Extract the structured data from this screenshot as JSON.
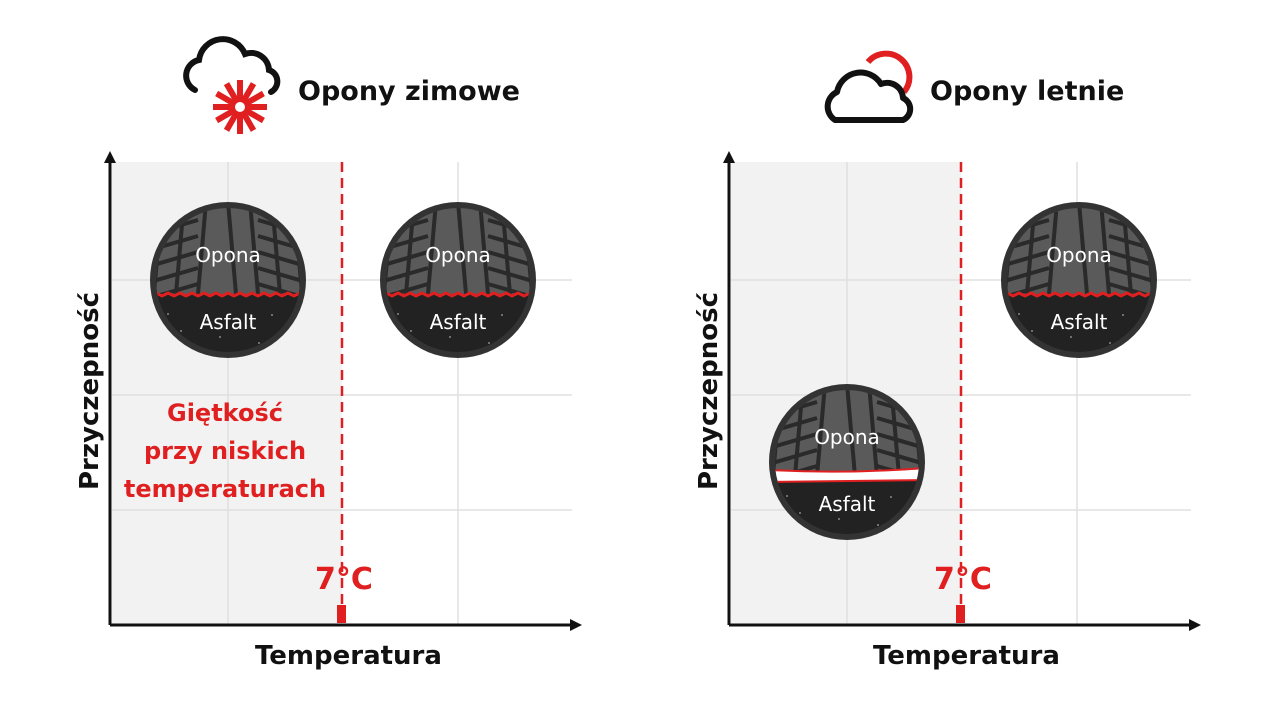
{
  "panels": [
    {
      "title": "Opony zimowe",
      "icon": "cloud-snowflake-icon",
      "ylabel": "Przyczepność",
      "xlabel": "Temperatura",
      "threshold_label": "7°C",
      "note": [
        "Giętkość",
        "przy niskich",
        "temperaturach"
      ],
      "tires": [
        {
          "top": "Opona",
          "bottom": "Asfalt",
          "grip": "high",
          "zone": "below 7°C"
        },
        {
          "top": "Opona",
          "bottom": "Asfalt",
          "grip": "high",
          "zone": "above 7°C"
        }
      ]
    },
    {
      "title": "Opony letnie",
      "icon": "cloud-sun-icon",
      "ylabel": "Przyczepność",
      "xlabel": "Temperatura",
      "threshold_label": "7°C",
      "tires": [
        {
          "top": "Opona",
          "bottom": "Asfalt",
          "grip": "low",
          "zone": "below 7°C"
        },
        {
          "top": "Opona",
          "bottom": "Asfalt",
          "grip": "high",
          "zone": "above 7°C"
        }
      ]
    }
  ],
  "colors": {
    "accent": "#e02020",
    "shade": "#f2f2f2",
    "tire": "#333333"
  }
}
